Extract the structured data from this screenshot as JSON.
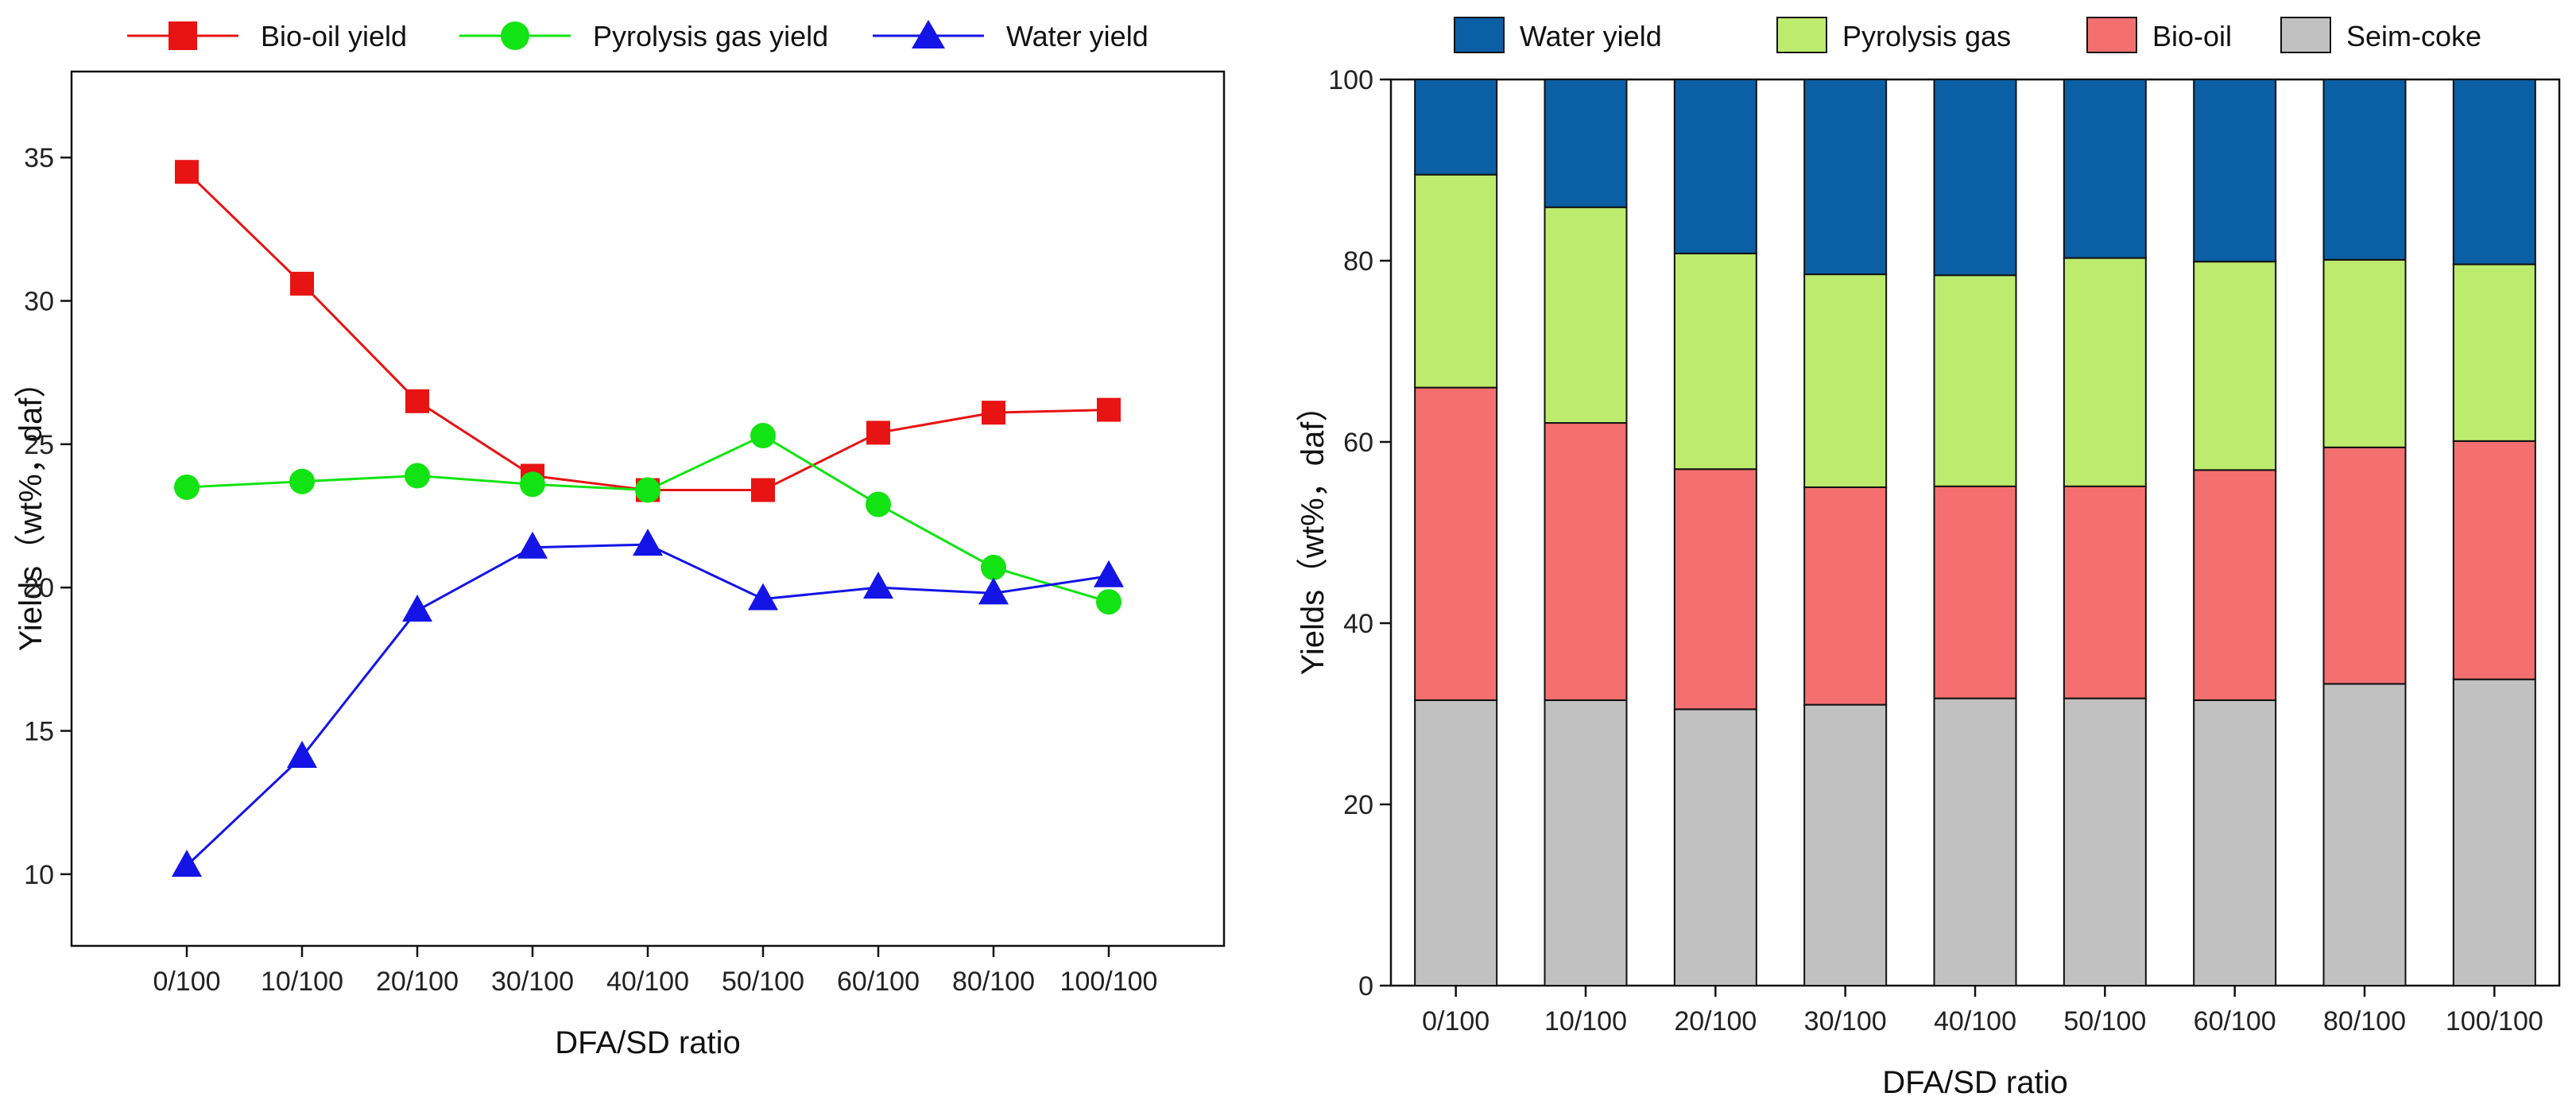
{
  "colors": {
    "bio_oil": "#e81313",
    "pyrolysis_gas": "#12e312",
    "water": "#1414e6",
    "stack_water": "#0b5fa5",
    "stack_gas": "#bdeb6e",
    "stack_oil": "#f47070",
    "stack_coke": "#c1c1c1"
  },
  "chart_data": [
    {
      "type": "line",
      "categories": [
        "0/100",
        "10/100",
        "20/100",
        "30/100",
        "40/100",
        "50/100",
        "60/100",
        "80/100",
        "100/100"
      ],
      "series": [
        {
          "name": "Bio-oil yield",
          "marker": "square",
          "values": [
            34.5,
            30.6,
            26.5,
            23.9,
            23.4,
            23.4,
            25.4,
            26.1,
            26.2
          ]
        },
        {
          "name": "Pyrolysis gas yield",
          "marker": "circle",
          "values": [
            23.5,
            23.7,
            23.9,
            23.6,
            23.4,
            25.3,
            22.9,
            20.7,
            19.5
          ]
        },
        {
          "name": "Water yield",
          "marker": "triangle",
          "values": [
            10.3,
            14.1,
            19.2,
            21.4,
            21.5,
            19.6,
            20.0,
            19.8,
            20.4
          ]
        }
      ],
      "title": "",
      "xlabel": "DFA/SD ratio",
      "ylabel": "Yields（wt%，daf）",
      "ylim": [
        7.5,
        38
      ],
      "yticks": [
        "10",
        "15",
        "20",
        "25",
        "30",
        "35"
      ],
      "legend": "top"
    },
    {
      "type": "bar",
      "stacked": true,
      "categories": [
        "0/100",
        "10/100",
        "20/100",
        "30/100",
        "40/100",
        "50/100",
        "60/100",
        "80/100",
        "100/100"
      ],
      "series": [
        {
          "name": "Seim-coke",
          "values": [
            31.5,
            31.5,
            30.5,
            31.0,
            31.7,
            31.7,
            31.5,
            33.3,
            33.8
          ]
        },
        {
          "name": "Bio-oil",
          "values": [
            34.5,
            30.6,
            26.5,
            24.0,
            23.4,
            23.4,
            25.4,
            26.1,
            26.3
          ]
        },
        {
          "name": "Pyrolysis gas",
          "values": [
            23.5,
            23.8,
            23.8,
            23.5,
            23.3,
            25.2,
            23.0,
            20.7,
            19.5
          ]
        },
        {
          "name": "Water yield",
          "values": [
            10.5,
            14.1,
            19.2,
            21.5,
            21.6,
            19.7,
            20.1,
            19.9,
            20.4
          ]
        }
      ],
      "legend_order": [
        "Water yield",
        "Pyrolysis gas",
        "Bio-oil",
        "Seim-coke"
      ],
      "title": "",
      "xlabel": "DFA/SD ratio",
      "ylabel": "Yields（wt%，daf）",
      "ylim": [
        0,
        100
      ],
      "yticks": [
        "0",
        "20",
        "40",
        "60",
        "80",
        "100"
      ],
      "legend": "top"
    }
  ]
}
